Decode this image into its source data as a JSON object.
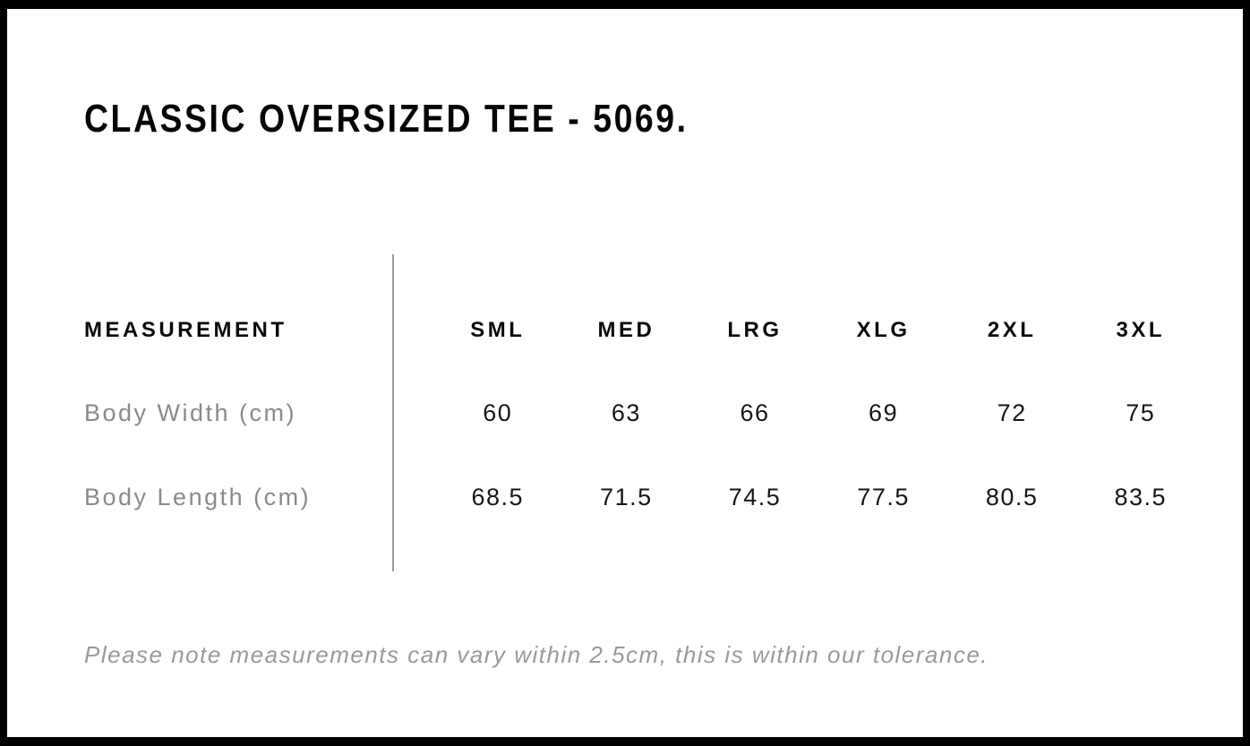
{
  "page": {
    "title": "CLASSIC OVERSIZED TEE - 5069.",
    "tolerance_note": "Please note measurements can vary within 2.5cm, this is within our tolerance."
  },
  "size_chart": {
    "measurement_header": "MEASUREMENT",
    "size_headers": [
      "SML",
      "MED",
      "LRG",
      "XLG",
      "2XL",
      "3XL"
    ],
    "rows": [
      {
        "label": "Body Width (cm)",
        "values": [
          "60",
          "63",
          "66",
          "69",
          "72",
          "75"
        ]
      },
      {
        "label": "Body Length (cm)",
        "values": [
          "68.5",
          "71.5",
          "74.5",
          "77.5",
          "80.5",
          "83.5"
        ]
      }
    ]
  },
  "colors": {
    "frame_border": "#000000",
    "background": "#ffffff",
    "heading_text": "#0a0a0a",
    "value_text": "#161616",
    "label_text": "#8a8a8a",
    "note_text": "#999999",
    "divider_line": "#9b9b9b"
  }
}
